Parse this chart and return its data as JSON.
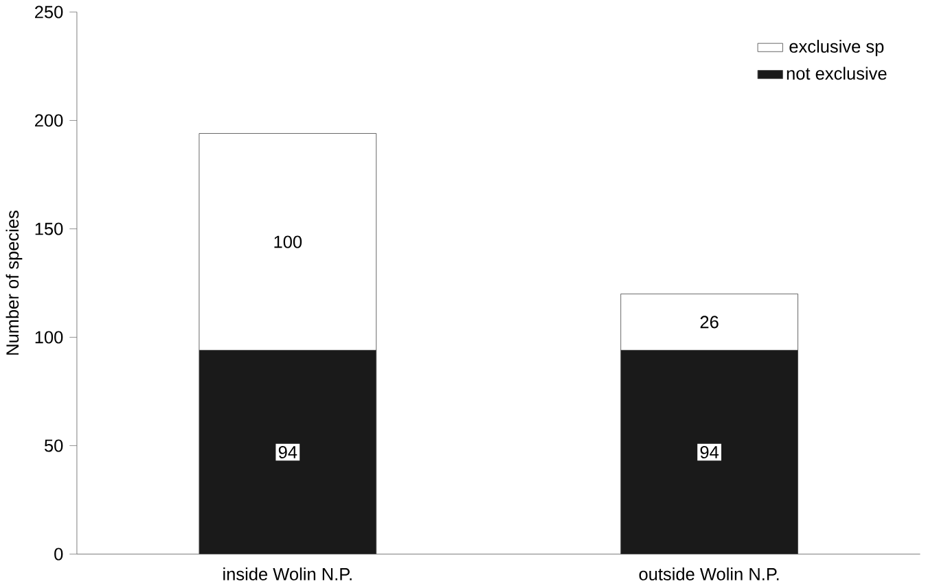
{
  "chart_data": {
    "type": "bar",
    "stacked": true,
    "ylabel": "Number of species",
    "categories": [
      "inside Wolin N.P.",
      "outside Wolin N.P."
    ],
    "series": [
      {
        "name": "not exclusive",
        "color": "#1a1a1a",
        "values": [
          94,
          94
        ]
      },
      {
        "name": "exclusive sp",
        "color": "#ffffff",
        "values": [
          100,
          26
        ]
      }
    ],
    "ylim": [
      0,
      250
    ],
    "yticks": [
      0,
      50,
      100,
      150,
      200,
      250
    ],
    "data_labels": true,
    "legend": "top right",
    "grid": false
  }
}
